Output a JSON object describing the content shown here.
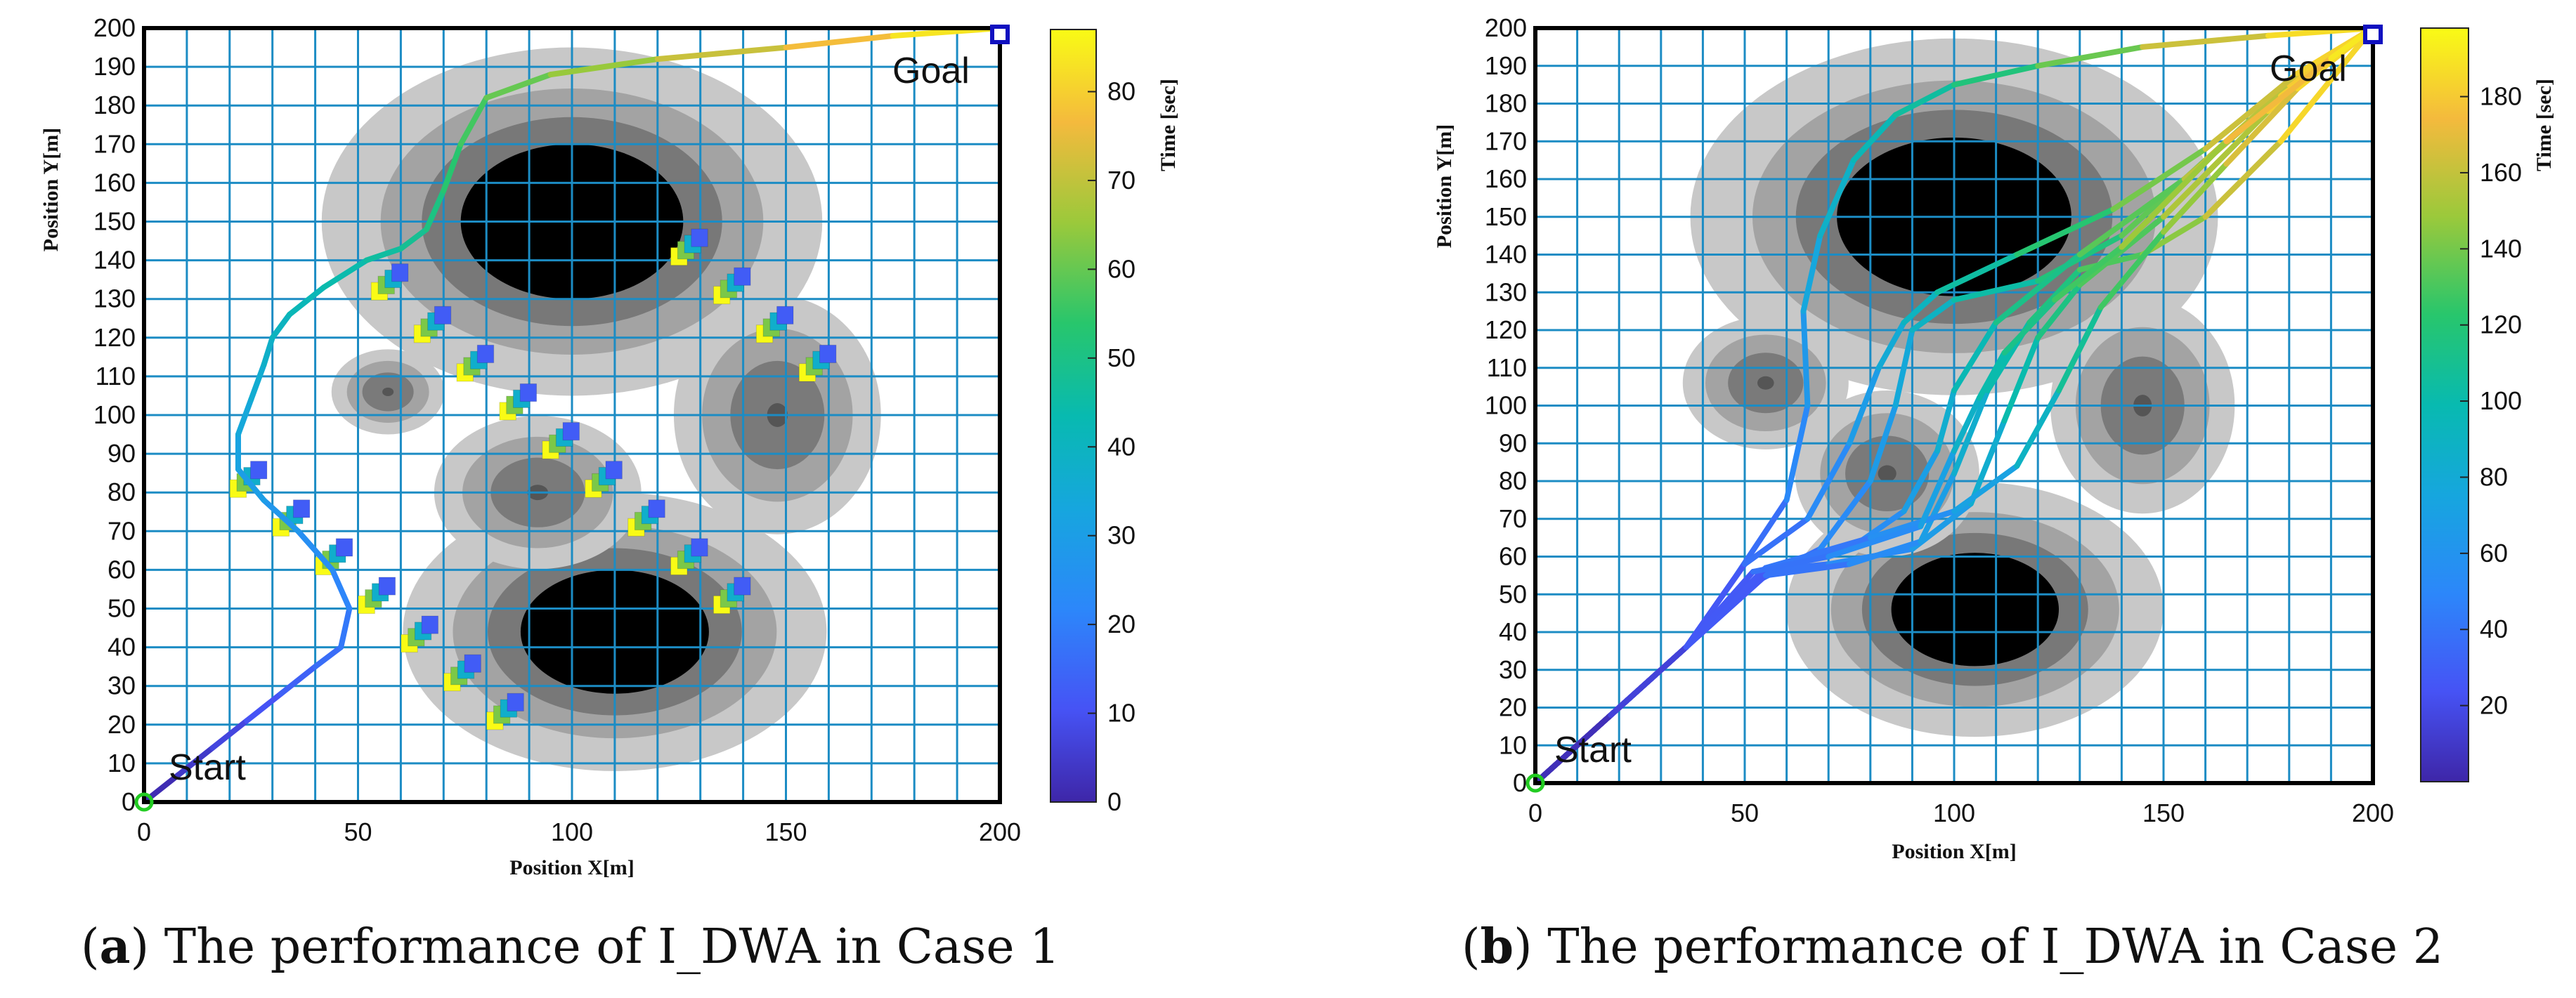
{
  "chart_data": [
    {
      "type": "line",
      "caption_letter": "a",
      "caption_text": "The performance of I_DWA in Case 1",
      "xlabel": "Position X[m]",
      "ylabel": "Position Y[m]",
      "xlim": [
        0,
        200
      ],
      "ylim": [
        0,
        200
      ],
      "grid_step": 10,
      "xticks": [
        0,
        50,
        100,
        150,
        200
      ],
      "yticks": [
        0,
        10,
        20,
        30,
        40,
        50,
        60,
        70,
        80,
        90,
        100,
        110,
        120,
        130,
        140,
        150,
        160,
        170,
        180,
        190,
        200
      ],
      "start_label": "Start",
      "goal_label": "Goal",
      "start_point": [
        0,
        0
      ],
      "goal_point": [
        200,
        200
      ],
      "colorbar": {
        "label": "Time [sec]",
        "range": [
          0,
          87
        ],
        "ticks": [
          0,
          10,
          20,
          30,
          40,
          50,
          60,
          70,
          80
        ]
      },
      "obstacles": [
        {
          "cx": 100,
          "cy": 150,
          "rx": 26,
          "ry": 20,
          "kind": "static"
        },
        {
          "cx": 110,
          "cy": 44,
          "rx": 22,
          "ry": 16,
          "kind": "static"
        },
        {
          "cx": 57,
          "cy": 106,
          "rx": 6,
          "ry": 5,
          "kind": "soft"
        },
        {
          "cx": 92,
          "cy": 80,
          "rx": 11,
          "ry": 9,
          "kind": "soft"
        },
        {
          "cx": 148,
          "cy": 100,
          "rx": 11,
          "ry": 14,
          "kind": "soft"
        }
      ],
      "series": [
        {
          "name": "path",
          "x": [
            0,
            8,
            16,
            24,
            32,
            40,
            46,
            48,
            44,
            36,
            28,
            22,
            22,
            25,
            28,
            30,
            34,
            42,
            52,
            60,
            66,
            70,
            74,
            80,
            95,
            120,
            150,
            175,
            200
          ],
          "y": [
            0,
            7,
            14,
            21,
            28,
            35,
            40,
            50,
            60,
            70,
            78,
            86,
            95,
            104,
            113,
            120,
            126,
            133,
            140,
            143,
            148,
            158,
            170,
            182,
            188,
            192,
            195,
            198,
            200
          ],
          "t": [
            0,
            3,
            6,
            9,
            12,
            15,
            17,
            20,
            23,
            26,
            29,
            31,
            33,
            35,
            37,
            39,
            41,
            43,
            45,
            47,
            49,
            52,
            55,
            58,
            62,
            68,
            74,
            80,
            87
          ]
        }
      ],
      "agents": [
        {
          "x": 55,
          "y": 132
        },
        {
          "x": 65,
          "y": 121
        },
        {
          "x": 75,
          "y": 111
        },
        {
          "x": 85,
          "y": 101
        },
        {
          "x": 95,
          "y": 91
        },
        {
          "x": 105,
          "y": 81
        },
        {
          "x": 115,
          "y": 71
        },
        {
          "x": 125,
          "y": 61
        },
        {
          "x": 135,
          "y": 51
        },
        {
          "x": 125,
          "y": 141
        },
        {
          "x": 135,
          "y": 131
        },
        {
          "x": 145,
          "y": 121
        },
        {
          "x": 155,
          "y": 111
        },
        {
          "x": 22,
          "y": 81
        },
        {
          "x": 32,
          "y": 71
        },
        {
          "x": 42,
          "y": 61
        },
        {
          "x": 52,
          "y": 51
        },
        {
          "x": 62,
          "y": 41
        },
        {
          "x": 72,
          "y": 31
        },
        {
          "x": 82,
          "y": 21
        }
      ]
    },
    {
      "type": "line",
      "caption_letter": "b",
      "caption_text": "The performance of I_DWA in Case 2",
      "xlabel": "Position X[m]",
      "ylabel": "Position Y[m]",
      "xlim": [
        0,
        200
      ],
      "ylim": [
        0,
        200
      ],
      "grid_step": 10,
      "xticks": [
        0,
        50,
        100,
        150,
        200
      ],
      "yticks": [
        0,
        10,
        20,
        30,
        40,
        50,
        60,
        70,
        80,
        90,
        100,
        110,
        120,
        130,
        140,
        150,
        160,
        170,
        180,
        190,
        200
      ],
      "start_label": "Start",
      "goal_label": "Goal",
      "start_point": [
        0,
        0
      ],
      "goal_point": [
        200,
        200
      ],
      "colorbar": {
        "label": "Time [sec]",
        "range": [
          0,
          198
        ],
        "ticks": [
          20,
          40,
          60,
          80,
          100,
          120,
          140,
          160,
          180
        ]
      },
      "obstacles": [
        {
          "cx": 100,
          "cy": 150,
          "rx": 28,
          "ry": 21,
          "kind": "static"
        },
        {
          "cx": 105,
          "cy": 46,
          "rx": 20,
          "ry": 15,
          "kind": "static"
        },
        {
          "cx": 55,
          "cy": 106,
          "rx": 9,
          "ry": 8,
          "kind": "soft"
        },
        {
          "cx": 84,
          "cy": 82,
          "rx": 10,
          "ry": 10,
          "kind": "soft"
        },
        {
          "cx": 145,
          "cy": 100,
          "rx": 10,
          "ry": 13,
          "kind": "soft"
        }
      ],
      "series": [
        {
          "name": "path-1",
          "x": [
            0,
            18,
            36,
            48,
            60,
            65,
            64,
            68,
            76,
            86,
            100,
            120,
            145,
            175,
            200
          ],
          "y": [
            0,
            18,
            36,
            55,
            75,
            100,
            125,
            145,
            165,
            177,
            185,
            190,
            195,
            198,
            200
          ],
          "t": [
            0,
            10,
            20,
            30,
            45,
            58,
            70,
            82,
            92,
            100,
            110,
            125,
            150,
            175,
            198
          ]
        },
        {
          "name": "path-2",
          "x": [
            0,
            18,
            36,
            52,
            68,
            80,
            86,
            90,
            100,
            120,
            140,
            160,
            180,
            200
          ],
          "y": [
            0,
            18,
            36,
            53,
            62,
            80,
            100,
            120,
            128,
            133,
            145,
            165,
            185,
            200
          ],
          "t": [
            0,
            10,
            20,
            32,
            45,
            60,
            72,
            84,
            95,
            110,
            125,
            145,
            170,
            190
          ]
        },
        {
          "name": "path-3",
          "x": [
            0,
            18,
            36,
            50,
            65,
            75,
            82,
            88,
            96,
            115,
            138,
            160,
            182,
            200
          ],
          "y": [
            0,
            18,
            36,
            58,
            70,
            90,
            110,
            122,
            130,
            140,
            152,
            168,
            188,
            200
          ],
          "t": [
            0,
            10,
            20,
            32,
            46,
            60,
            74,
            86,
            96,
            112,
            130,
            150,
            175,
            192
          ]
        },
        {
          "name": "path-4",
          "x": [
            0,
            18,
            36,
            55,
            75,
            88,
            96,
            100,
            110,
            130,
            155,
            178,
            200
          ],
          "y": [
            0,
            18,
            36,
            57,
            62,
            72,
            88,
            104,
            122,
            140,
            160,
            182,
            200
          ],
          "t": [
            0,
            10,
            20,
            34,
            48,
            62,
            76,
            90,
            104,
            122,
            145,
            170,
            195
          ]
        },
        {
          "name": "path-5",
          "x": [
            0,
            18,
            36,
            52,
            70,
            90,
            104,
            112,
            120,
            130,
            150,
            175,
            200
          ],
          "y": [
            0,
            18,
            36,
            56,
            58,
            62,
            74,
            96,
            118,
            132,
            150,
            178,
            200
          ],
          "t": [
            0,
            10,
            20,
            34,
            46,
            60,
            74,
            92,
            108,
            122,
            140,
            168,
            196
          ]
        },
        {
          "name": "path-6",
          "x": [
            0,
            18,
            36,
            55,
            75,
            92,
            100,
            108,
            118,
            130,
            145,
            160,
            178,
            200
          ],
          "y": [
            0,
            18,
            36,
            55,
            58,
            64,
            82,
            104,
            122,
            136,
            140,
            150,
            170,
            200
          ],
          "t": [
            0,
            10,
            20,
            33,
            47,
            61,
            76,
            92,
            108,
            124,
            138,
            152,
            172,
            198
          ]
        },
        {
          "name": "path-7",
          "x": [
            0,
            18,
            36,
            55,
            80,
            100,
            115,
            125,
            135,
            150,
            165,
            182,
            200
          ],
          "y": [
            0,
            18,
            36,
            57,
            65,
            72,
            84,
            104,
            126,
            146,
            164,
            184,
            200
          ],
          "t": [
            0,
            10,
            20,
            34,
            50,
            64,
            80,
            98,
            118,
            138,
            156,
            176,
            194
          ]
        },
        {
          "name": "path-8",
          "x": [
            0,
            18,
            36,
            52,
            70,
            92,
            100,
            106,
            112,
            124,
            140,
            165,
            190,
            200
          ],
          "y": [
            0,
            18,
            36,
            56,
            60,
            68,
            88,
            102,
            114,
            128,
            142,
            170,
            192,
            200
          ],
          "t": [
            0,
            10,
            20,
            33,
            46,
            62,
            80,
            94,
            106,
            120,
            136,
            162,
            186,
            196
          ]
        }
      ]
    }
  ]
}
